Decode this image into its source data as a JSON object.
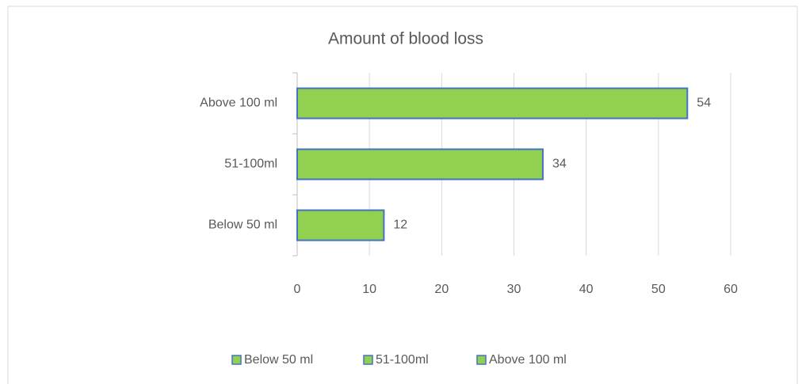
{
  "chart_data": {
    "type": "bar",
    "orientation": "horizontal",
    "title": "Amount of blood loss",
    "categories": [
      "Below 50 ml",
      "51-100ml",
      "Above 100 ml"
    ],
    "values": [
      12,
      34,
      54
    ],
    "color": "#92d050",
    "edge_color": "#4472c4",
    "xlim": [
      0,
      60
    ],
    "xticks": [
      0,
      10,
      20,
      30,
      40,
      50,
      60
    ],
    "grid": true,
    "legend": "bottom"
  }
}
